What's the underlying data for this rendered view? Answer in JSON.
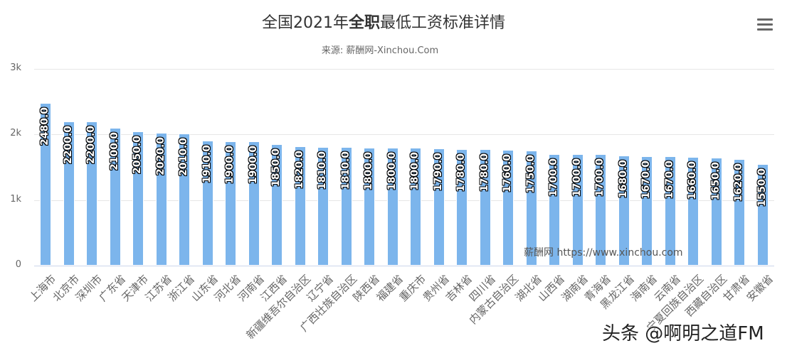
{
  "header": {
    "title_pre": "全国2021年",
    "title_bold": "全职",
    "title_post": "最低工资标准详情",
    "subtitle": "来源: 薪酬网-Xinchou.Com",
    "menu_icon": "hamburger-menu-icon"
  },
  "credit": "薪酬网 https://www.xinchou.com",
  "watermark": "头条 @啊明之道FM",
  "colors": {
    "bar": "#7cb5ec",
    "grid": "#e6e6e6",
    "axis": "#ccd6eb",
    "text": "#666666",
    "title": "#333333"
  },
  "chart_data": {
    "type": "bar",
    "title": "全国2021年全职最低工资标准详情",
    "subtitle": "来源: 薪酬网-Xinchou.Com",
    "xlabel": "",
    "ylabel": "",
    "ylim": [
      0,
      3000
    ],
    "yticks": [
      "0",
      "1k",
      "2k",
      "3k"
    ],
    "grid": true,
    "legend": false,
    "data_labels": "rotated -90°, one decimal",
    "categories": [
      "上海市",
      "北京市",
      "深圳市",
      "广东省",
      "天津市",
      "江苏省",
      "浙江省",
      "山东省",
      "河北省",
      "河南省",
      "江西省",
      "新疆维吾尔自治区",
      "辽宁省",
      "广西壮族自治区",
      "陕西省",
      "福建省",
      "重庆市",
      "贵州省",
      "吉林省",
      "四川省",
      "内蒙古自治区",
      "湖北省",
      "山西省",
      "湖南省",
      "青海省",
      "黑龙江省",
      "海南省",
      "云南省",
      "宁夏回族自治区",
      "西藏自治区",
      "甘肃省",
      "安徽省"
    ],
    "values": [
      2480,
      2200,
      2200,
      2100,
      2050,
      2020,
      2010,
      1910,
      1900,
      1900,
      1850,
      1820,
      1810,
      1810,
      1800,
      1800,
      1800,
      1790,
      1780,
      1780,
      1760,
      1750,
      1700,
      1700,
      1700,
      1680,
      1670,
      1670,
      1660,
      1650,
      1620,
      1550
    ],
    "value_labels": [
      "2480.0",
      "2200.0",
      "2200.0",
      "2100.0",
      "2050.0",
      "2020.0",
      "2010.0",
      "1910.0",
      "1900.0",
      "1900.0",
      "1850.0",
      "1820.0",
      "1810.0",
      "1810.0",
      "1800.0",
      "1800.0",
      "1800.0",
      "1790.0",
      "1780.0",
      "1780.0",
      "1760.0",
      "1750.0",
      "1700.0",
      "1700.0",
      "1700.0",
      "1680.0",
      "1670.0",
      "1670.0",
      "1660.0",
      "1650.0",
      "1620.0",
      "1550.0"
    ]
  }
}
